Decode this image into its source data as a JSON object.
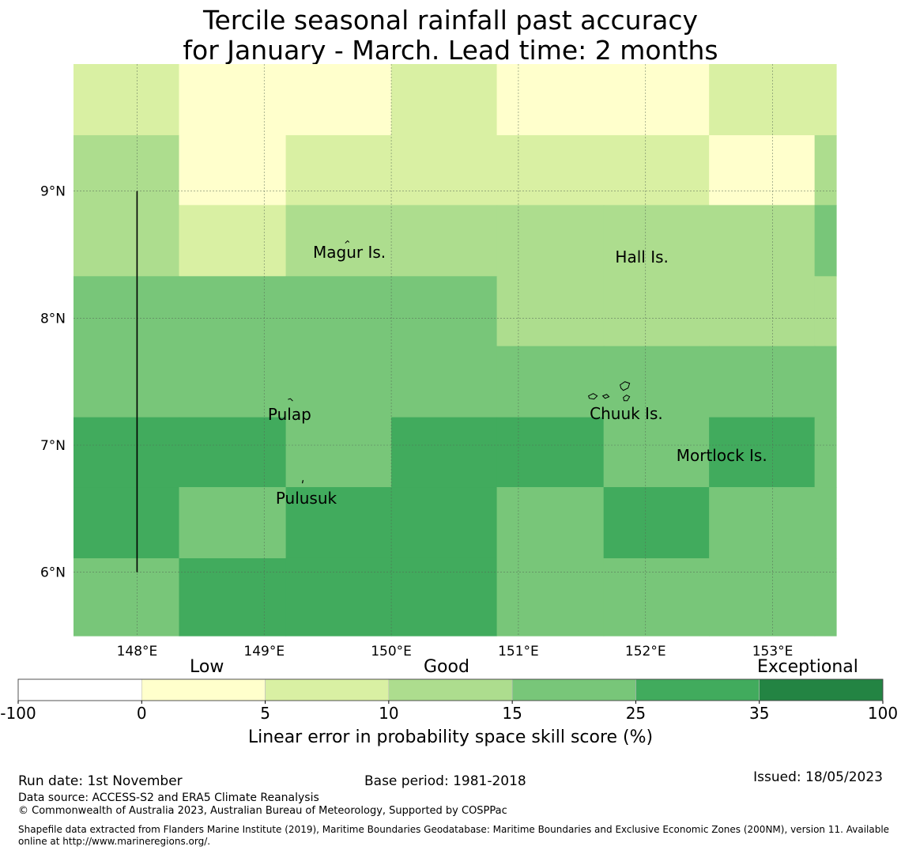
{
  "title_line1": "Tercile seasonal rainfall past accuracy",
  "title_line2": "for January - March. Lead time: 2 months",
  "map": {
    "lon_range": [
      147.5,
      153.5
    ],
    "lat_range": [
      5.5,
      10.0
    ],
    "cell_lon_edges": [
      147.5,
      148.33,
      149.17,
      150.0,
      150.83,
      151.67,
      152.5,
      153.33,
      153.5
    ],
    "cell_lat_edges": [
      10.0,
      9.44,
      8.89,
      8.33,
      7.78,
      7.22,
      6.67,
      6.11,
      5.5
    ],
    "skill_grid": [
      [
        7,
        2,
        2,
        7,
        2,
        2,
        7,
        7
      ],
      [
        12,
        2,
        7,
        7,
        7,
        7,
        2,
        12
      ],
      [
        12,
        7,
        12,
        12,
        12,
        12,
        12,
        20
      ],
      [
        20,
        20,
        20,
        20,
        12,
        12,
        12,
        12
      ],
      [
        20,
        20,
        20,
        20,
        20,
        20,
        20,
        20
      ],
      [
        30,
        30,
        20,
        30,
        30,
        20,
        30,
        20
      ],
      [
        30,
        20,
        30,
        30,
        20,
        30,
        20,
        20
      ],
      [
        20,
        30,
        30,
        30,
        20,
        20,
        20,
        20
      ]
    ],
    "x_ticks": [
      {
        "value": 148,
        "label": "148°E"
      },
      {
        "value": 149,
        "label": "149°E"
      },
      {
        "value": 150,
        "label": "150°E"
      },
      {
        "value": 151,
        "label": "151°E"
      },
      {
        "value": 152,
        "label": "152°E"
      },
      {
        "value": 153,
        "label": "153°E"
      }
    ],
    "y_ticks": [
      {
        "value": 9,
        "label": "9°N"
      },
      {
        "value": 8,
        "label": "8°N"
      },
      {
        "value": 7,
        "label": "7°N"
      },
      {
        "value": 6,
        "label": "6°N"
      }
    ],
    "boundary_line": {
      "lon": 148,
      "lat_from": 6.0,
      "lat_to": 9.0
    },
    "places": [
      {
        "name": "Magur Is.",
        "lon": 149.67,
        "lat": 8.52
      },
      {
        "name": "Hall Is.",
        "lon": 151.97,
        "lat": 8.48
      },
      {
        "name": "Pulap",
        "lon": 149.2,
        "lat": 7.24
      },
      {
        "name": "Chuuk Is.",
        "lon": 151.85,
        "lat": 7.25
      },
      {
        "name": "Mortlock Is.",
        "lon": 152.6,
        "lat": 6.92
      },
      {
        "name": "Pulusuk",
        "lon": 149.33,
        "lat": 6.58
      }
    ]
  },
  "colorbar": {
    "category_labels": [
      "Low",
      "Good",
      "Exceptional"
    ],
    "ticks": [
      "-100",
      "0",
      "5",
      "10",
      "15",
      "25",
      "35",
      "100"
    ],
    "colors": [
      "#ffffff",
      "#ffffcc",
      "#d9f0a3",
      "#addd8e",
      "#78c679",
      "#41ab5d",
      "#238443"
    ],
    "label": "Linear error in probability space skill score (%)"
  },
  "footer": {
    "run_date": "Run date: 1st November",
    "base_period": "Base period: 1981-2018",
    "issued": "Issued: 18/05/2023",
    "data_source": "Data source: ACCESS-S2 and ERA5 Climate Reanalysis",
    "copyright": "© Commonwealth of Australia 2023, Australian Bureau of Meteorology, Supported by COSPPac",
    "shapefile_line1": "Shapefile data extracted from Flanders Marine Institute (2019), Maritime Boundaries Geodatabase: Maritime Boundaries and Exclusive Economic Zones (200NM), version 11. Available",
    "shapefile_line2": "online at http://www.marineregions.org/."
  }
}
